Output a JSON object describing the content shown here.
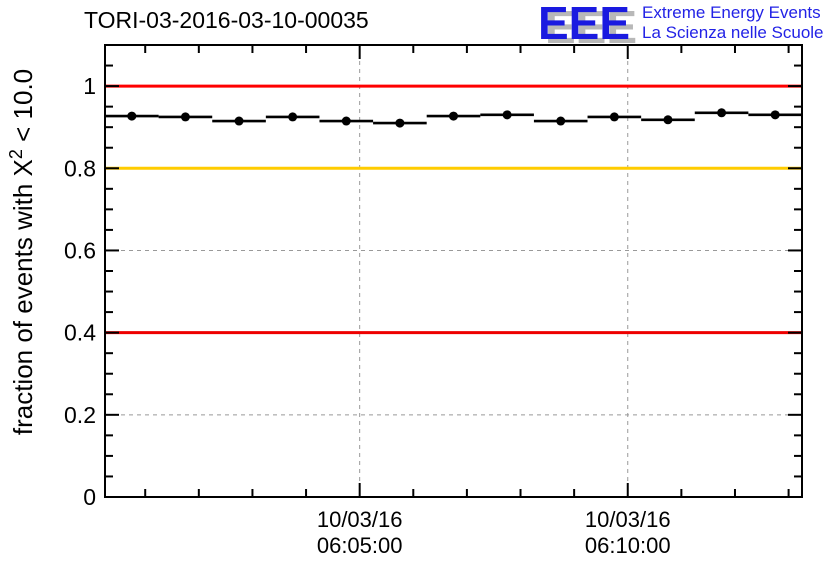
{
  "header": {
    "title": "TORI-03-2016-03-10-00035",
    "logo": {
      "acronym": "EEE",
      "tagline_en": "Extreme Energy Events",
      "tagline_it": "La Scienza nelle Scuole",
      "blue": "#2222e6",
      "shadow_gray": "#b8b8b8"
    }
  },
  "chart_data": {
    "type": "line",
    "title": "TORI-03-2016-03-10-00035",
    "ylabel": {
      "pre": "fraction of events with X",
      "sup": "2",
      "post": " < 10.0"
    },
    "ylim": [
      0,
      1.1
    ],
    "y_major_ticks": [
      {
        "v": 0,
        "label": "0"
      },
      {
        "v": 0.2,
        "label": "0.2"
      },
      {
        "v": 0.4,
        "label": "0.4"
      },
      {
        "v": 0.6,
        "label": "0.6"
      },
      {
        "v": 0.8,
        "label": "0.8"
      },
      {
        "v": 1,
        "label": "1"
      }
    ],
    "y_major_step": 0.2,
    "y_minor_step": 0.05,
    "x_axis": {
      "range_seconds_from_06": [
        15,
        795
      ],
      "minor_step_seconds": 60,
      "major_ticks": [
        {
          "t": 300,
          "date": "10/03/16",
          "time": "06:05:00"
        },
        {
          "t": 600,
          "date": "10/03/16",
          "time": "06:10:00"
        }
      ]
    },
    "grid": {
      "show": true,
      "color": "#999999",
      "dash": "4 4"
    },
    "reference_lines": [
      {
        "value": 1.0,
        "color": "#ff0000"
      },
      {
        "value": 0.8,
        "color": "#ffcc00"
      },
      {
        "value": 0.4,
        "color": "#ee0000"
      }
    ],
    "series": [
      {
        "name": "fraction of events with chi2 < 10.0",
        "marker_color": "#000000",
        "x_error_seconds": 30,
        "points": [
          {
            "time": "06:00:45",
            "t": 45,
            "value": 0.927
          },
          {
            "time": "06:01:45",
            "t": 105,
            "value": 0.925
          },
          {
            "time": "06:02:45",
            "t": 165,
            "value": 0.915
          },
          {
            "time": "06:03:45",
            "t": 225,
            "value": 0.925
          },
          {
            "time": "06:04:45",
            "t": 285,
            "value": 0.915
          },
          {
            "time": "06:05:45",
            "t": 345,
            "value": 0.91
          },
          {
            "time": "06:06:45",
            "t": 405,
            "value": 0.927
          },
          {
            "time": "06:07:45",
            "t": 465,
            "value": 0.93
          },
          {
            "time": "06:08:45",
            "t": 525,
            "value": 0.915
          },
          {
            "time": "06:09:45",
            "t": 585,
            "value": 0.925
          },
          {
            "time": "06:10:45",
            "t": 645,
            "value": 0.918
          },
          {
            "time": "06:11:45",
            "t": 705,
            "value": 0.935
          },
          {
            "time": "06:12:45",
            "t": 765,
            "value": 0.93
          }
        ]
      }
    ]
  }
}
